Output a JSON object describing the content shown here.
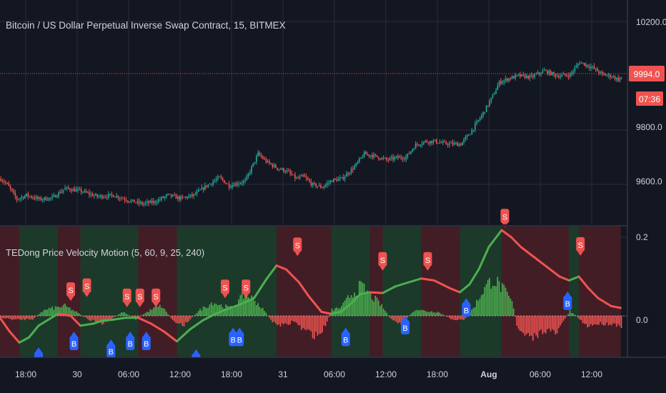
{
  "title": "Bitcoin / US Dollar Perpetual Inverse Swap Contract, 15, BITMEX",
  "indicator_title": "TEDong Price Velocity Motion (5, 60, 9, 25, 240)",
  "price_badge": "9994.0",
  "timer_badge": "07:36",
  "colors": {
    "background": "#131722",
    "grid": "#2a2e39",
    "up": "#26a69a",
    "down": "#ef5350",
    "velocity_up": "#4caf50",
    "velocity_down": "#ef5350",
    "sell_marker": "#ef5350",
    "buy_marker": "#2962ff",
    "bg_up": "#1e3f2a",
    "bg_down": "#4a1f27",
    "text": "#d1d4dc"
  },
  "chart_data": [
    {
      "type": "candlestick",
      "title": "Bitcoin / US Dollar Perpetual Inverse Swap Contract, 15, BITMEX",
      "y_ticks": [
        "10200.0",
        "9800.0",
        "9600.0"
      ],
      "last_price": 9994.0,
      "path": [
        [
          0,
          9620
        ],
        [
          4,
          9600
        ],
        [
          10,
          9545
        ],
        [
          16,
          9560
        ],
        [
          24,
          9545
        ],
        [
          32,
          9550
        ],
        [
          40,
          9585
        ],
        [
          50,
          9575
        ],
        [
          60,
          9555
        ],
        [
          70,
          9560
        ],
        [
          80,
          9540
        ],
        [
          88,
          9528
        ],
        [
          96,
          9536
        ],
        [
          104,
          9560
        ],
        [
          112,
          9548
        ],
        [
          120,
          9560
        ],
        [
          128,
          9595
        ],
        [
          136,
          9625
        ],
        [
          142,
          9595
        ],
        [
          152,
          9612
        ],
        [
          160,
          9712
        ],
        [
          166,
          9680
        ],
        [
          172,
          9660
        ],
        [
          178,
          9648
        ],
        [
          184,
          9620
        ],
        [
          188,
          9630
        ],
        [
          194,
          9598
        ],
        [
          200,
          9590
        ],
        [
          206,
          9615
        ],
        [
          212,
          9620
        ],
        [
          220,
          9665
        ],
        [
          226,
          9712
        ],
        [
          232,
          9705
        ],
        [
          240,
          9690
        ],
        [
          246,
          9698
        ],
        [
          252,
          9700
        ],
        [
          258,
          9745
        ],
        [
          264,
          9758
        ],
        [
          270,
          9758
        ],
        [
          276,
          9750
        ],
        [
          286,
          9748
        ],
        [
          292,
          9790
        ],
        [
          300,
          9862
        ],
        [
          306,
          9925
        ],
        [
          310,
          9975
        ],
        [
          316,
          9990
        ],
        [
          322,
          10000
        ],
        [
          330,
          9995
        ],
        [
          338,
          10018
        ],
        [
          346,
          10000
        ],
        [
          354,
          10003
        ],
        [
          360,
          10050
        ],
        [
          368,
          10030
        ],
        [
          374,
          10005
        ],
        [
          380,
          9998
        ],
        [
          384,
          9986
        ],
        [
          386,
          9994
        ]
      ]
    },
    {
      "type": "bar",
      "title": "TEDong Price Velocity Motion (5, 60, 9, 25, 240)",
      "y_ticks": [
        "0.2",
        "0.0"
      ],
      "velocity_hist": [
        [
          0,
          -0.005
        ],
        [
          10,
          -0.01
        ],
        [
          20,
          -0.008
        ],
        [
          26,
          0.012
        ],
        [
          30,
          0.018
        ],
        [
          40,
          0.025
        ],
        [
          46,
          0.012
        ],
        [
          56,
          -0.012
        ],
        [
          64,
          -0.02
        ],
        [
          70,
          -0.005
        ],
        [
          76,
          0.01
        ],
        [
          84,
          -0.008
        ],
        [
          92,
          0.012
        ],
        [
          96,
          0.02
        ],
        [
          100,
          0.025
        ],
        [
          108,
          -0.016
        ],
        [
          114,
          -0.022
        ],
        [
          124,
          0.015
        ],
        [
          132,
          0.035
        ],
        [
          138,
          0.025
        ],
        [
          144,
          0.02
        ],
        [
          152,
          0.055
        ],
        [
          158,
          0.04
        ],
        [
          164,
          0.012
        ],
        [
          170,
          -0.02
        ],
        [
          178,
          -0.025
        ],
        [
          182,
          -0.012
        ],
        [
          188,
          -0.035
        ],
        [
          196,
          -0.05
        ],
        [
          200,
          -0.04
        ],
        [
          206,
          0.015
        ],
        [
          212,
          0.022
        ],
        [
          218,
          0.055
        ],
        [
          224,
          0.075
        ],
        [
          228,
          0.06
        ],
        [
          236,
          0.03
        ],
        [
          244,
          -0.015
        ],
        [
          250,
          -0.02
        ],
        [
          258,
          0.018
        ],
        [
          264,
          0.012
        ],
        [
          272,
          0.01
        ],
        [
          280,
          -0.008
        ],
        [
          288,
          -0.012
        ],
        [
          294,
          0.02
        ],
        [
          300,
          0.065
        ],
        [
          306,
          0.095
        ],
        [
          312,
          0.07
        ],
        [
          318,
          0.035
        ],
        [
          322,
          -0.04
        ],
        [
          330,
          -0.06
        ],
        [
          338,
          -0.035
        ],
        [
          346,
          -0.045
        ],
        [
          350,
          -0.012
        ],
        [
          354,
          0.012
        ],
        [
          358,
          0.0
        ],
        [
          364,
          -0.025
        ],
        [
          372,
          -0.02
        ],
        [
          380,
          -0.02
        ],
        [
          386,
          -0.025
        ]
      ],
      "velocity_line": [
        [
          0,
          -0.005
        ],
        [
          6,
          -0.04
        ],
        [
          12,
          -0.068
        ],
        [
          18,
          -0.055
        ],
        [
          24,
          -0.025
        ],
        [
          30,
          -0.01
        ],
        [
          36,
          0.005
        ],
        [
          44,
          0.0
        ],
        [
          50,
          -0.025
        ],
        [
          58,
          -0.02
        ],
        [
          64,
          -0.012
        ],
        [
          70,
          -0.01
        ],
        [
          78,
          -0.005
        ],
        [
          86,
          -0.005
        ],
        [
          94,
          -0.02
        ],
        [
          102,
          -0.04
        ],
        [
          110,
          -0.065
        ],
        [
          118,
          -0.035
        ],
        [
          126,
          -0.012
        ],
        [
          134,
          0.005
        ],
        [
          140,
          0.015
        ],
        [
          150,
          0.03
        ],
        [
          158,
          0.045
        ],
        [
          166,
          0.095
        ],
        [
          172,
          0.128
        ],
        [
          178,
          0.118
        ],
        [
          186,
          0.085
        ],
        [
          192,
          0.05
        ],
        [
          200,
          0.01
        ],
        [
          206,
          0.005
        ],
        [
          212,
          0.01
        ],
        [
          218,
          0.03
        ],
        [
          224,
          0.055
        ],
        [
          230,
          0.06
        ],
        [
          238,
          0.058
        ],
        [
          246,
          0.075
        ],
        [
          254,
          0.085
        ],
        [
          262,
          0.095
        ],
        [
          270,
          0.09
        ],
        [
          280,
          0.07
        ],
        [
          286,
          0.06
        ],
        [
          292,
          0.08
        ],
        [
          298,
          0.12
        ],
        [
          304,
          0.175
        ],
        [
          312,
          0.218
        ],
        [
          318,
          0.2
        ],
        [
          324,
          0.175
        ],
        [
          332,
          0.15
        ],
        [
          340,
          0.125
        ],
        [
          348,
          0.1
        ],
        [
          354,
          0.09
        ],
        [
          360,
          0.1
        ],
        [
          366,
          0.07
        ],
        [
          372,
          0.045
        ],
        [
          380,
          0.025
        ],
        [
          386,
          0.02
        ]
      ],
      "markers": [
        {
          "t": 24,
          "v": -0.08,
          "label": "B"
        },
        {
          "t": 44,
          "v": 0.038,
          "label": "S"
        },
        {
          "t": 46,
          "v": -0.04,
          "label": "B"
        },
        {
          "t": 54,
          "v": 0.048,
          "label": "S"
        },
        {
          "t": 69,
          "v": -0.06,
          "label": "B"
        },
        {
          "t": 79,
          "v": 0.022,
          "label": "S"
        },
        {
          "t": 81,
          "v": -0.04,
          "label": "B"
        },
        {
          "t": 87,
          "v": 0.022,
          "label": "S"
        },
        {
          "t": 91,
          "v": -0.04,
          "label": "B"
        },
        {
          "t": 97,
          "v": 0.022,
          "label": "S"
        },
        {
          "t": 122,
          "v": -0.085,
          "label": "B"
        },
        {
          "t": 140,
          "v": 0.045,
          "label": "S"
        },
        {
          "t": 145,
          "v": -0.03,
          "label": "B"
        },
        {
          "t": 149,
          "v": -0.03,
          "label": "B"
        },
        {
          "t": 153,
          "v": 0.045,
          "label": "S"
        },
        {
          "t": 185,
          "v": 0.152,
          "label": "S"
        },
        {
          "t": 215,
          "v": -0.03,
          "label": "B"
        },
        {
          "t": 238,
          "v": 0.115,
          "label": "S"
        },
        {
          "t": 252,
          "v": 0.0,
          "label": "B"
        },
        {
          "t": 266,
          "v": 0.115,
          "label": "S"
        },
        {
          "t": 290,
          "v": 0.045,
          "label": "B"
        },
        {
          "t": 314,
          "v": 0.225,
          "label": "S"
        },
        {
          "t": 353,
          "v": 0.062,
          "label": "B"
        },
        {
          "t": 361,
          "v": 0.153,
          "label": "S"
        }
      ]
    }
  ],
  "x_axis": {
    "ticks": [
      "18:00",
      "30",
      "06:00",
      "12:00",
      "18:00",
      "31",
      "06:00",
      "12:00",
      "18:00",
      "Aug",
      "06:00",
      "12:00"
    ]
  }
}
